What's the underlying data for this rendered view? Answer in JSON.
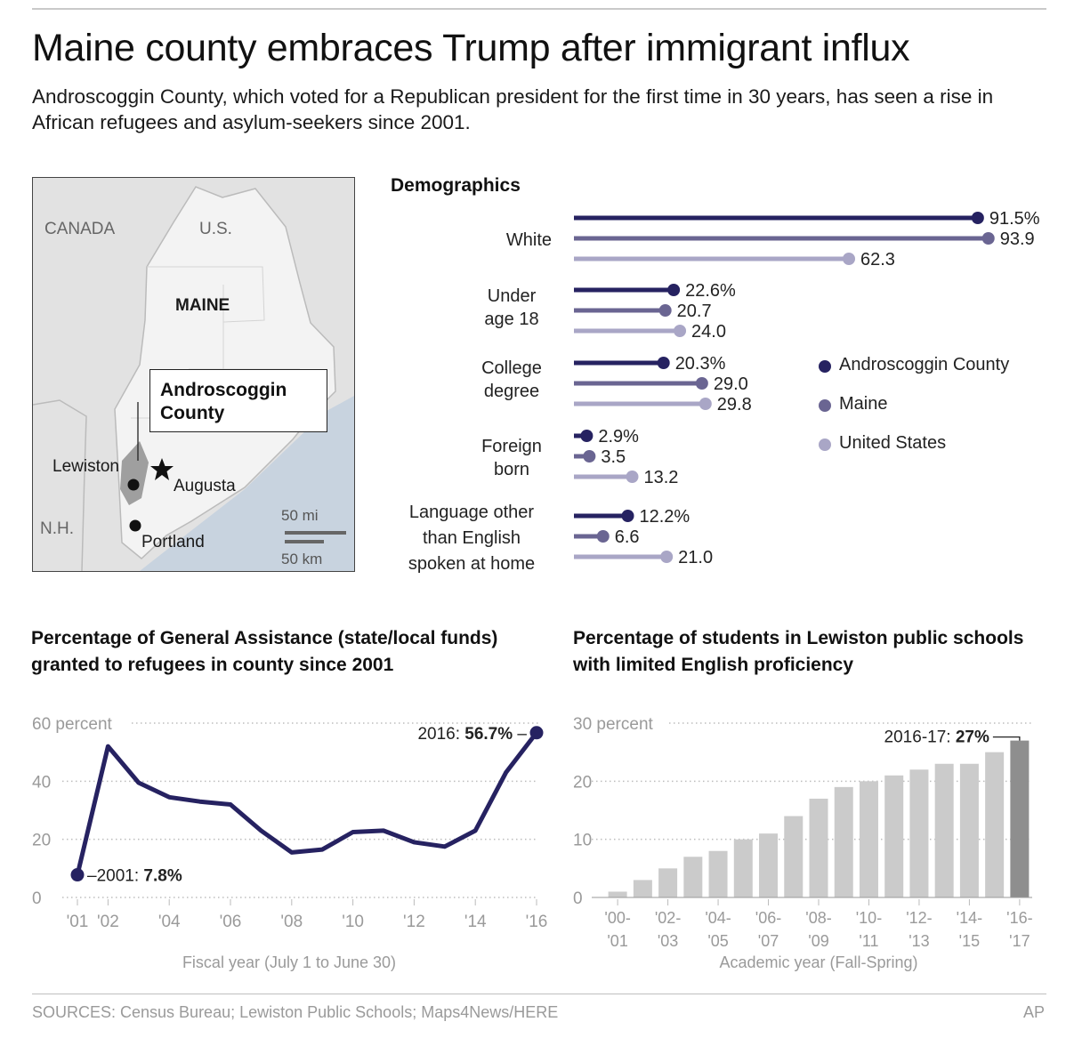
{
  "headline": "Maine county embraces Trump after immigrant influx",
  "dek": "Androscoggin County, which voted for a Republican president for the first time in 30 years, has seen a rise in African refugees and asylum-seekers since 2001.",
  "map": {
    "labels": {
      "canada": "CANADA",
      "us": "U.S.",
      "maine": "MAINE",
      "county": "Androscoggin County",
      "lewiston": "Lewiston",
      "augusta": "Augusta",
      "nh": "N.H.",
      "portland": "Portland",
      "scale_mi": "50 mi",
      "scale_km": "50 km"
    },
    "icons": [
      "city-dot-icon",
      "capital-star-icon"
    ]
  },
  "demographics": {
    "title": "Demographics",
    "legend": [
      "Androscoggin County",
      "Maine",
      "United States"
    ],
    "colors": [
      "#262261",
      "#6a6592",
      "#a9a6c6"
    ],
    "categories": [
      {
        "label": "White",
        "values": [
          "91.5%",
          "93.9",
          "62.3"
        ],
        "numeric": [
          91.5,
          93.9,
          62.3
        ]
      },
      {
        "label": "Under age 18",
        "values": [
          "22.6%",
          "20.7",
          "24.0"
        ],
        "numeric": [
          22.6,
          20.7,
          24.0
        ]
      },
      {
        "label": "College degree",
        "values": [
          "20.3%",
          "29.0",
          "29.8"
        ],
        "numeric": [
          20.3,
          29.0,
          29.8
        ]
      },
      {
        "label": "Foreign born",
        "values": [
          "2.9%",
          "3.5",
          "13.2"
        ],
        "numeric": [
          2.9,
          3.5,
          13.2
        ]
      },
      {
        "label": "Language other than English spoken at home",
        "values": [
          "12.2%",
          "6.6",
          "21.0"
        ],
        "numeric": [
          12.2,
          6.6,
          21.0
        ]
      }
    ]
  },
  "assistance": {
    "title": "Percentage of General Assistance (state/local funds) granted to refugees in county since 2001",
    "xcaption": "Fiscal year (July 1 to June 30)",
    "yticks": [
      "60 percent",
      "40",
      "20",
      "0"
    ],
    "xticks": [
      "'01",
      "'02",
      "'04",
      "'06",
      "'08",
      "'10",
      "'12",
      "'14",
      "'16"
    ],
    "start_label_prefix": "2001: ",
    "start_label_value": "7.8%",
    "end_label_prefix": "2016: ",
    "end_label_value": "56.7%"
  },
  "students": {
    "title": "Percentage of students in Lewiston public schools with limited English proficiency",
    "xcaption": "Academic year (Fall-Spring)",
    "yticks": [
      "30 percent",
      "20",
      "10",
      "0"
    ],
    "xticks_top": [
      "'00-",
      "'02-",
      "'04-",
      "'06-",
      "'08-",
      "'10-",
      "'12-",
      "'14-",
      "'16-"
    ],
    "xticks_bottom": [
      "'01",
      "'03",
      "'05",
      "'07",
      "'09",
      "'11",
      "'13",
      "'15",
      "'17"
    ],
    "end_label_prefix": "2016-17: ",
    "end_label_value": "27%"
  },
  "chart_data": [
    {
      "type": "bar",
      "title": "Demographics",
      "categories": [
        "White",
        "Under age 18",
        "College degree",
        "Foreign born",
        "Language other than English spoken at home"
      ],
      "series": [
        {
          "name": "Androscoggin County",
          "values": [
            91.5,
            22.6,
            20.3,
            2.9,
            12.2
          ]
        },
        {
          "name": "Maine",
          "values": [
            93.9,
            20.7,
            29.0,
            3.5,
            6.6
          ]
        },
        {
          "name": "United States",
          "values": [
            62.3,
            24.0,
            29.8,
            13.2,
            21.0
          ]
        }
      ],
      "legend": "right"
    },
    {
      "type": "line",
      "title": "Percentage of General Assistance (state/local funds) granted to refugees in county since 2001",
      "xlabel": "Fiscal year (July 1 to June 30)",
      "ylabel": "percent",
      "x": [
        2001,
        2002,
        2003,
        2004,
        2005,
        2006,
        2007,
        2008,
        2009,
        2010,
        2011,
        2012,
        2013,
        2014,
        2015,
        2016
      ],
      "y": [
        7.8,
        52,
        39.5,
        34.5,
        33,
        32,
        23,
        15.5,
        16.5,
        22.5,
        23,
        19,
        17.5,
        23,
        43,
        56.7
      ],
      "ylim": [
        0,
        60
      ],
      "grid": true
    },
    {
      "type": "bar",
      "title": "Percentage of students in Lewiston public schools with limited English proficiency",
      "xlabel": "Academic year (Fall-Spring)",
      "ylabel": "percent",
      "categories": [
        "2000-01",
        "2001-02",
        "2002-03",
        "2003-04",
        "2004-05",
        "2005-06",
        "2006-07",
        "2007-08",
        "2008-09",
        "2009-10",
        "2010-11",
        "2011-12",
        "2012-13",
        "2013-14",
        "2014-15",
        "2015-16",
        "2016-17"
      ],
      "values": [
        1,
        3,
        5,
        7,
        8,
        10,
        11,
        14,
        17,
        19,
        20,
        21,
        22,
        23,
        23,
        25,
        27
      ],
      "ylim": [
        0,
        30
      ],
      "grid": true
    }
  ],
  "footer": {
    "sources": "SOURCES: Census Bureau; Lewiston Public Schools; Maps4News/HERE",
    "credit": "AP"
  }
}
